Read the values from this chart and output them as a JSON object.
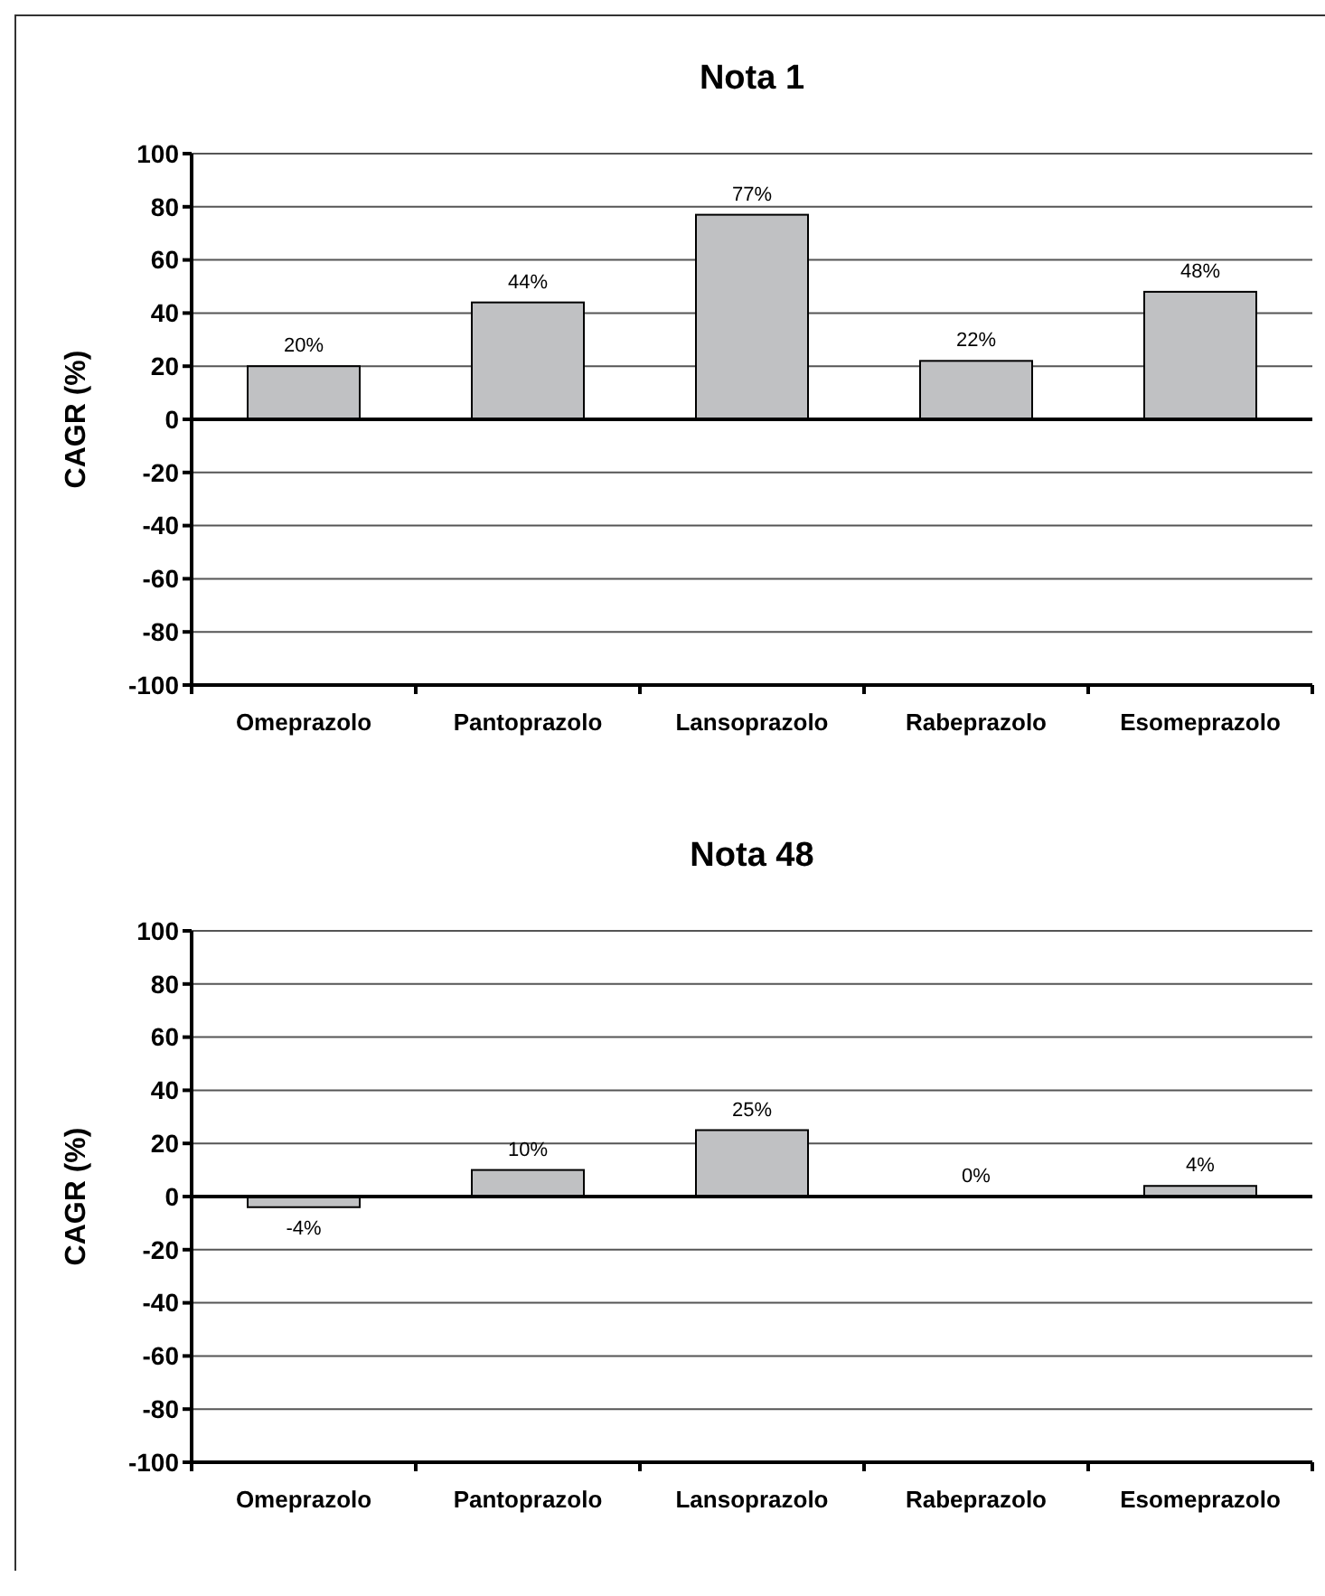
{
  "chart_data": [
    {
      "type": "bar",
      "title": "Nota 1",
      "ylabel": "CAGR (%)",
      "categories": [
        "Omeprazolo",
        "Pantoprazolo",
        "Lansoprazolo",
        "Rabeprazolo",
        "Esomeprazolo"
      ],
      "values": [
        20,
        44,
        77,
        22,
        48
      ],
      "value_labels": [
        "20%",
        "44%",
        "77%",
        "22%",
        "48%"
      ],
      "color": "#c0c1c3",
      "ylim": [
        -100,
        100
      ],
      "yticks": [
        -100,
        -80,
        -60,
        -40,
        -20,
        0,
        20,
        40,
        60,
        80,
        100
      ],
      "grid": "y"
    },
    {
      "type": "bar",
      "title": "Nota 48",
      "ylabel": "CAGR (%)",
      "categories": [
        "Omeprazolo",
        "Pantoprazolo",
        "Lansoprazolo",
        "Rabeprazolo",
        "Esomeprazolo"
      ],
      "values": [
        -4,
        10,
        25,
        0,
        4
      ],
      "value_labels": [
        "-4%",
        "10%",
        "25%",
        "0%",
        "4%"
      ],
      "color": "#c0c1c3",
      "ylim": [
        -100,
        100
      ],
      "yticks": [
        -100,
        -80,
        -60,
        -40,
        -20,
        0,
        20,
        40,
        60,
        80,
        100
      ],
      "grid": "y"
    }
  ]
}
